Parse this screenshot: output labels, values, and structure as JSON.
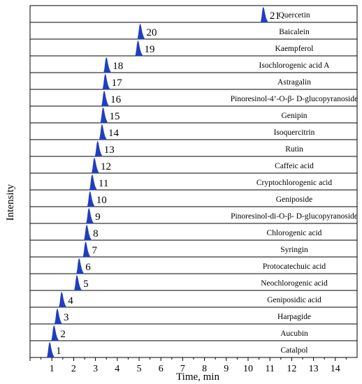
{
  "chart_data": {
    "type": "line",
    "title": "",
    "xlabel": "Time, min",
    "ylabel": "Intensity",
    "xlim": [
      0,
      15
    ],
    "x_ticks": [
      "1",
      "2",
      "3",
      "4",
      "5",
      "6",
      "7",
      "8",
      "9",
      "10",
      "11",
      "12",
      "13",
      "14"
    ],
    "peak_color": "#1f3fbf",
    "series": [
      {
        "id": "21",
        "name": "Quercetin",
        "rt": 10.7
      },
      {
        "id": "20",
        "name": "Baicalein",
        "rt": 5.05
      },
      {
        "id": "19",
        "name": "Kaempferol",
        "rt": 4.95
      },
      {
        "id": "18",
        "name": "Isochlorogenic acid A",
        "rt": 3.5
      },
      {
        "id": "17",
        "name": "Astragalin",
        "rt": 3.45
      },
      {
        "id": "16",
        "name": "Pinoresinol-4’-O-β- D-glucopyranoside",
        "rt": 3.4
      },
      {
        "id": "15",
        "name": "Genipin",
        "rt": 3.35
      },
      {
        "id": "14",
        "name": "Isoquercitrin",
        "rt": 3.3
      },
      {
        "id": "13",
        "name": "Rutin",
        "rt": 3.1
      },
      {
        "id": "12",
        "name": "Caffeic acid",
        "rt": 2.95
      },
      {
        "id": "11",
        "name": "Cryptochlorogenic acid",
        "rt": 2.85
      },
      {
        "id": "10",
        "name": "Geniposide",
        "rt": 2.75
      },
      {
        "id": "9",
        "name": "Pinoresinol-di-O-β- D-glucopyranoside",
        "rt": 2.7
      },
      {
        "id": "8",
        "name": "Chlorogenic acid",
        "rt": 2.6
      },
      {
        "id": "7",
        "name": "Syringin",
        "rt": 2.55
      },
      {
        "id": "6",
        "name": "Protocatechuic acid",
        "rt": 2.25
      },
      {
        "id": "5",
        "name": "Neochlorogenic acid",
        "rt": 2.15
      },
      {
        "id": "4",
        "name": "Geniposidic acid",
        "rt": 1.45
      },
      {
        "id": "3",
        "name": "Harpagide",
        "rt": 1.25
      },
      {
        "id": "2",
        "name": "Aucubin",
        "rt": 1.1
      },
      {
        "id": "1",
        "name": "Catalpol",
        "rt": 0.9
      }
    ]
  }
}
